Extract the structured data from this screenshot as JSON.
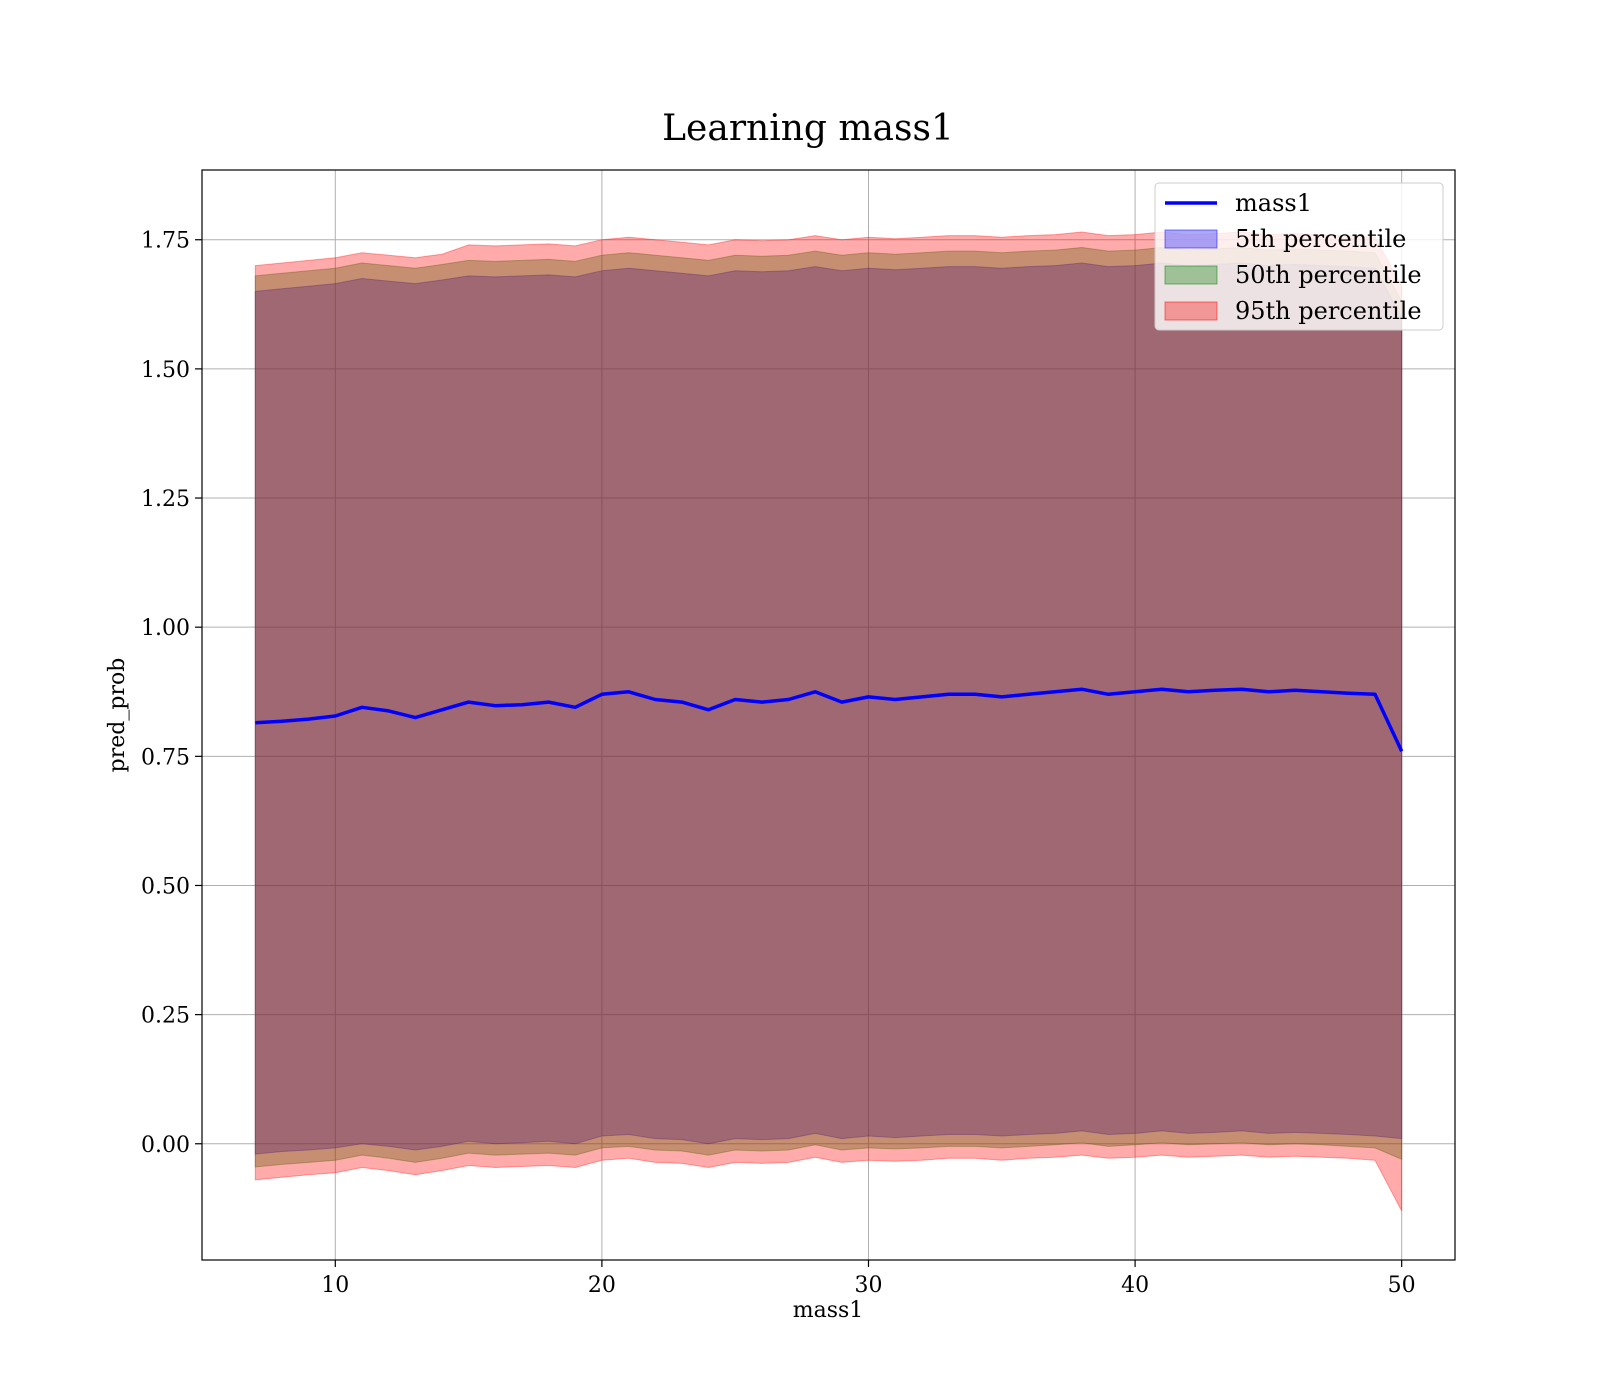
{
  "chart_data": {
    "type": "area",
    "title": "Learning mass1",
    "xlabel": "mass1",
    "ylabel": "pred_prob",
    "xlim": [
      5,
      52
    ],
    "ylim": [
      -0.225,
      1.885
    ],
    "xticks": [
      10,
      20,
      30,
      40,
      50
    ],
    "yticks": [
      0.0,
      0.25,
      0.5,
      0.75,
      1.0,
      1.25,
      1.5,
      1.75
    ],
    "xtick_labels": [
      "10",
      "20",
      "30",
      "40",
      "50"
    ],
    "ytick_labels": [
      "0.00",
      "0.25",
      "0.50",
      "0.75",
      "1.00",
      "1.25",
      "1.50",
      "1.75"
    ],
    "grid": true,
    "legend_position": "top-right",
    "x": [
      7,
      8,
      9,
      10,
      11,
      12,
      13,
      14,
      15,
      16,
      17,
      18,
      19,
      20,
      21,
      22,
      23,
      24,
      25,
      26,
      27,
      28,
      29,
      30,
      31,
      32,
      33,
      34,
      35,
      36,
      37,
      38,
      39,
      40,
      41,
      42,
      43,
      44,
      45,
      46,
      47,
      48,
      49,
      50
    ],
    "series": [
      {
        "name": "mass1",
        "kind": "line",
        "color": "#0000ff",
        "values": [
          0.815,
          0.818,
          0.822,
          0.828,
          0.845,
          0.838,
          0.825,
          0.84,
          0.855,
          0.848,
          0.85,
          0.855,
          0.845,
          0.87,
          0.875,
          0.86,
          0.855,
          0.84,
          0.86,
          0.855,
          0.86,
          0.875,
          0.855,
          0.865,
          0.86,
          0.865,
          0.87,
          0.87,
          0.865,
          0.87,
          0.875,
          0.88,
          0.87,
          0.875,
          0.88,
          0.875,
          0.878,
          0.88,
          0.875,
          0.878,
          0.875,
          0.872,
          0.87,
          0.76
        ]
      },
      {
        "name": "5th percentile",
        "kind": "band",
        "color": "#0000ff",
        "lower": [
          -0.02,
          -0.015,
          -0.012,
          -0.008,
          0.0,
          -0.005,
          -0.012,
          -0.005,
          0.005,
          0.0,
          0.002,
          0.005,
          0.0,
          0.015,
          0.018,
          0.01,
          0.008,
          0.0,
          0.01,
          0.008,
          0.01,
          0.02,
          0.01,
          0.015,
          0.012,
          0.015,
          0.018,
          0.018,
          0.015,
          0.018,
          0.02,
          0.025,
          0.018,
          0.02,
          0.025,
          0.02,
          0.022,
          0.025,
          0.02,
          0.022,
          0.02,
          0.018,
          0.015,
          0.01
        ],
        "upper": [
          1.65,
          1.655,
          1.66,
          1.665,
          1.675,
          1.67,
          1.665,
          1.672,
          1.68,
          1.678,
          1.68,
          1.682,
          1.678,
          1.69,
          1.695,
          1.69,
          1.685,
          1.68,
          1.69,
          1.688,
          1.69,
          1.698,
          1.69,
          1.695,
          1.692,
          1.695,
          1.698,
          1.698,
          1.695,
          1.698,
          1.7,
          1.705,
          1.698,
          1.7,
          1.705,
          1.7,
          1.702,
          1.705,
          1.7,
          1.702,
          1.7,
          1.698,
          1.695,
          1.6
        ]
      },
      {
        "name": "50th percentile",
        "kind": "band",
        "color": "#008000",
        "lower": [
          -0.045,
          -0.04,
          -0.036,
          -0.032,
          -0.022,
          -0.028,
          -0.036,
          -0.028,
          -0.018,
          -0.022,
          -0.02,
          -0.018,
          -0.022,
          -0.008,
          -0.005,
          -0.012,
          -0.014,
          -0.022,
          -0.012,
          -0.014,
          -0.012,
          -0.002,
          -0.012,
          -0.008,
          -0.01,
          -0.008,
          -0.005,
          -0.005,
          -0.008,
          -0.005,
          -0.002,
          0.002,
          -0.005,
          -0.002,
          0.002,
          -0.002,
          0.0,
          0.002,
          -0.002,
          0.0,
          -0.002,
          -0.005,
          -0.008,
          -0.03
        ],
        "upper": [
          1.68,
          1.685,
          1.69,
          1.695,
          1.705,
          1.7,
          1.695,
          1.702,
          1.71,
          1.708,
          1.71,
          1.712,
          1.708,
          1.72,
          1.725,
          1.72,
          1.715,
          1.71,
          1.72,
          1.718,
          1.72,
          1.728,
          1.72,
          1.725,
          1.722,
          1.725,
          1.728,
          1.728,
          1.725,
          1.728,
          1.73,
          1.735,
          1.728,
          1.73,
          1.735,
          1.73,
          1.732,
          1.735,
          1.73,
          1.732,
          1.73,
          1.728,
          1.725,
          1.63
        ]
      },
      {
        "name": "95th percentile",
        "kind": "band",
        "color": "#ff0000",
        "lower": [
          -0.07,
          -0.065,
          -0.06,
          -0.056,
          -0.046,
          -0.052,
          -0.06,
          -0.052,
          -0.042,
          -0.046,
          -0.044,
          -0.042,
          -0.046,
          -0.032,
          -0.028,
          -0.036,
          -0.038,
          -0.046,
          -0.036,
          -0.038,
          -0.036,
          -0.026,
          -0.036,
          -0.032,
          -0.034,
          -0.032,
          -0.028,
          -0.028,
          -0.032,
          -0.028,
          -0.026,
          -0.022,
          -0.028,
          -0.026,
          -0.022,
          -0.026,
          -0.024,
          -0.022,
          -0.026,
          -0.024,
          -0.026,
          -0.028,
          -0.032,
          -0.13
        ],
        "upper": [
          1.7,
          1.705,
          1.71,
          1.715,
          1.725,
          1.72,
          1.715,
          1.722,
          1.74,
          1.738,
          1.74,
          1.742,
          1.738,
          1.75,
          1.755,
          1.75,
          1.745,
          1.74,
          1.75,
          1.748,
          1.75,
          1.758,
          1.75,
          1.755,
          1.752,
          1.755,
          1.758,
          1.758,
          1.755,
          1.758,
          1.76,
          1.765,
          1.758,
          1.76,
          1.765,
          1.76,
          1.762,
          1.765,
          1.76,
          1.762,
          1.76,
          1.758,
          1.755,
          1.66
        ]
      }
    ]
  }
}
